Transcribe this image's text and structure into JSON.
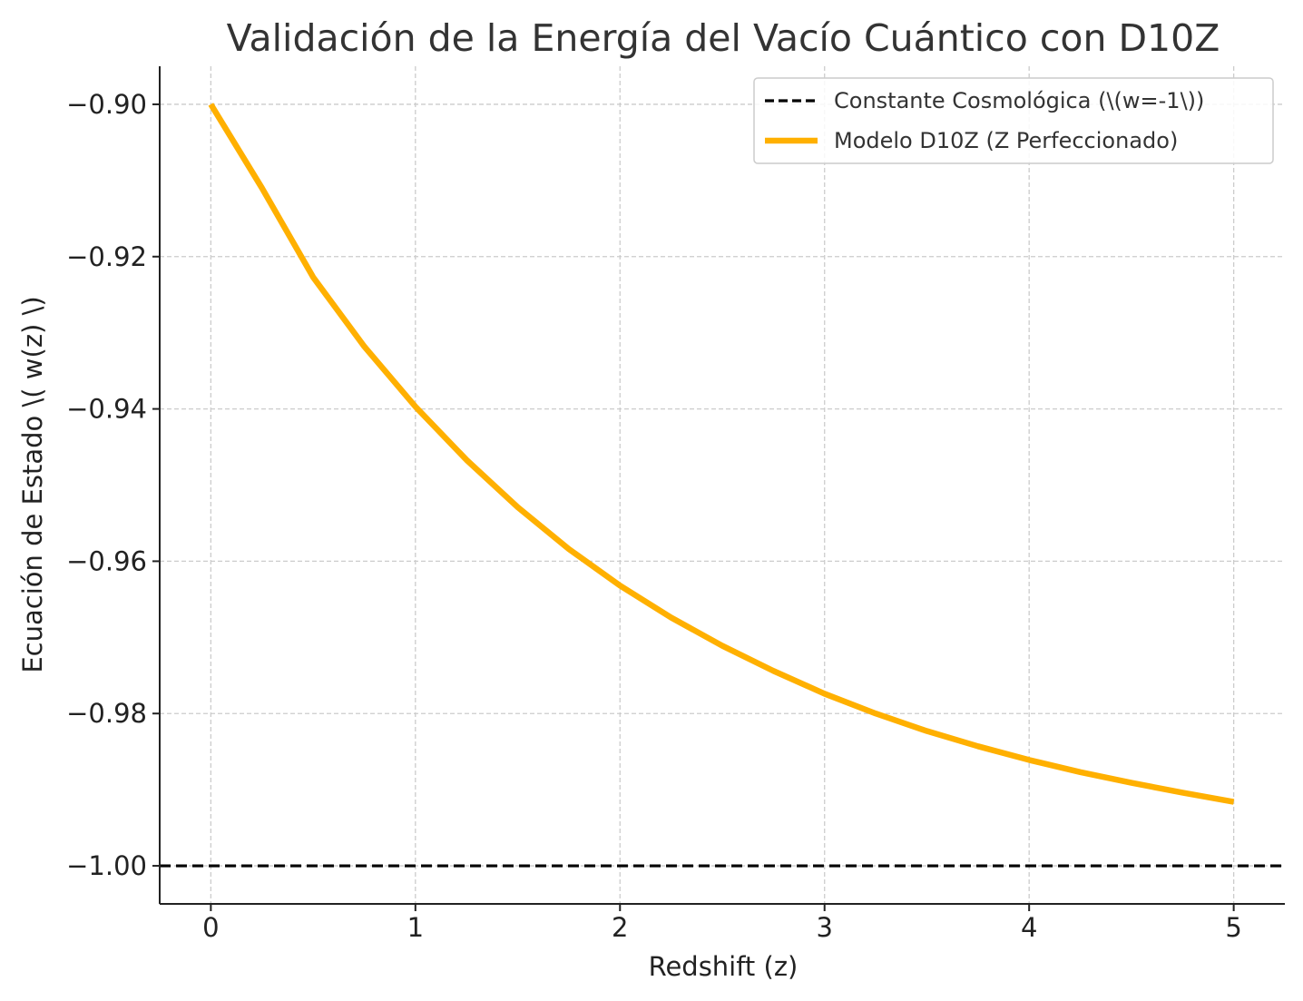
{
  "colors": {
    "model_line": "#FFB000",
    "reference_line": "#000000",
    "grid": "#cccccc",
    "axis": "#222222",
    "legend_border": "#cccccc"
  },
  "chart_data": {
    "type": "line",
    "title": "Validación de la Energía del Vacío Cuántico con D10Z",
    "xlabel": "Redshift (z)",
    "ylabel": "Ecuación de Estado \\( w(z) \\)",
    "xlim": [
      -0.25,
      5.25
    ],
    "ylim": [
      -1.005,
      -0.895
    ],
    "x_ticks": [
      0,
      1,
      2,
      3,
      4,
      5
    ],
    "x_tick_labels": [
      "0",
      "1",
      "2",
      "3",
      "4",
      "5"
    ],
    "y_ticks": [
      -1.0,
      -0.98,
      -0.96,
      -0.94,
      -0.92,
      -0.9
    ],
    "y_tick_labels": [
      "−1.00",
      "−0.98",
      "−0.96",
      "−0.94",
      "−0.92",
      "−0.90"
    ],
    "grid": true,
    "legend_position": "top-right",
    "series": [
      {
        "name": "Constante Cosmológica (\\(w=-1\\))",
        "style": "dashed",
        "color": "#000000",
        "horizontal_line": true,
        "y": -1.0
      },
      {
        "name": "Modelo D10Z (Z Perfeccionado)",
        "style": "solid",
        "color": "#FFB000",
        "x": [
          0,
          0.25,
          0.5,
          0.75,
          1.0,
          1.25,
          1.5,
          1.75,
          2.0,
          2.25,
          2.5,
          2.75,
          3.0,
          3.25,
          3.5,
          3.75,
          4.0,
          4.25,
          4.5,
          4.75,
          5.0
        ],
        "y": [
          -0.9,
          -0.911,
          -0.9227,
          -0.9318,
          -0.9397,
          -0.9467,
          -0.9529,
          -0.9584,
          -0.9632,
          -0.9674,
          -0.9711,
          -0.9744,
          -0.9774,
          -0.98,
          -0.9823,
          -0.9843,
          -0.9861,
          -0.9877,
          -0.9891,
          -0.9904,
          -0.9916
        ]
      }
    ]
  }
}
